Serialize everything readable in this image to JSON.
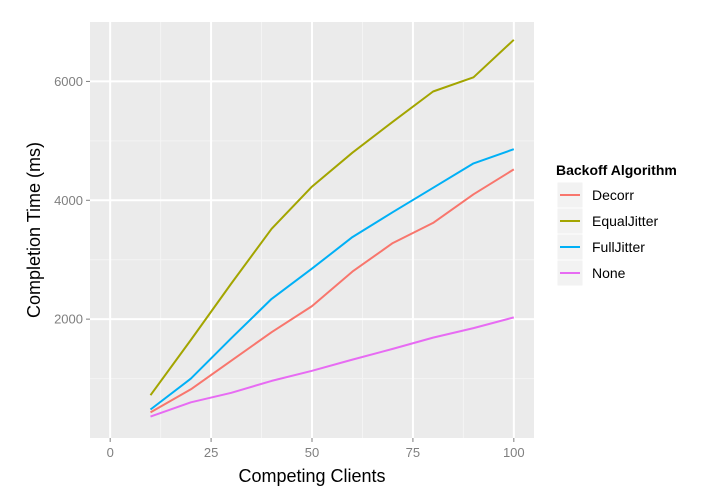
{
  "chart_data": {
    "type": "line",
    "xlabel": "Competing Clients",
    "ylabel": "Completion Time (ms)",
    "xlim": [
      -5,
      105
    ],
    "ylim": [
      0,
      7000
    ],
    "x_ticks": [
      0,
      25,
      50,
      75,
      100
    ],
    "x_tick_labels": [
      "0",
      "25",
      "50",
      "75",
      "100"
    ],
    "y_ticks": [
      2000,
      4000,
      6000
    ],
    "y_tick_labels": [
      "2000",
      "4000",
      "6000"
    ],
    "grid": true,
    "legend_title": "Backoff Algorithm",
    "legend_position": "right",
    "x": [
      10,
      20,
      30,
      40,
      50,
      60,
      70,
      80,
      90,
      100
    ],
    "series": [
      {
        "name": "Decorr",
        "color": "#F8766D",
        "values": [
          430,
          820,
          1300,
          1780,
          2220,
          2800,
          3280,
          3620,
          4100,
          4520
        ]
      },
      {
        "name": "EqualJitter",
        "color": "#A3A500",
        "values": [
          720,
          1650,
          2600,
          3520,
          4230,
          4800,
          5320,
          5830,
          6070,
          6700
        ]
      },
      {
        "name": "FullJitter",
        "color": "#00B0F6",
        "values": [
          480,
          1000,
          1680,
          2340,
          2850,
          3380,
          3800,
          4210,
          4620,
          4860
        ]
      },
      {
        "name": "None",
        "color": "#E76BF3",
        "values": [
          360,
          600,
          760,
          960,
          1130,
          1320,
          1500,
          1690,
          1850,
          2030
        ]
      }
    ]
  }
}
